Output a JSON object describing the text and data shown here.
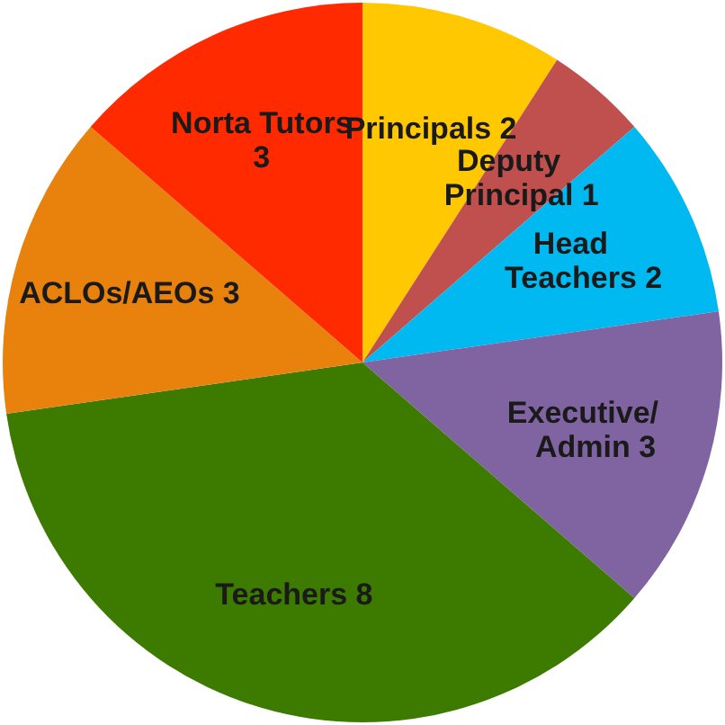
{
  "chart_data": {
    "type": "pie",
    "categories": [
      "Principals",
      "Deputy Principal",
      "Head Teachers",
      "Executive/Admin",
      "Teachers",
      "ACLOs/AEOs",
      "Norta Tutors"
    ],
    "values": [
      2,
      1,
      2,
      3,
      8,
      3,
      3
    ],
    "colors": [
      "#ffc800",
      "#c0504d",
      "#00b9f1",
      "#8064a2",
      "#3d7a00",
      "#e8820c",
      "#ff2a00"
    ],
    "data_labels": true
  }
}
